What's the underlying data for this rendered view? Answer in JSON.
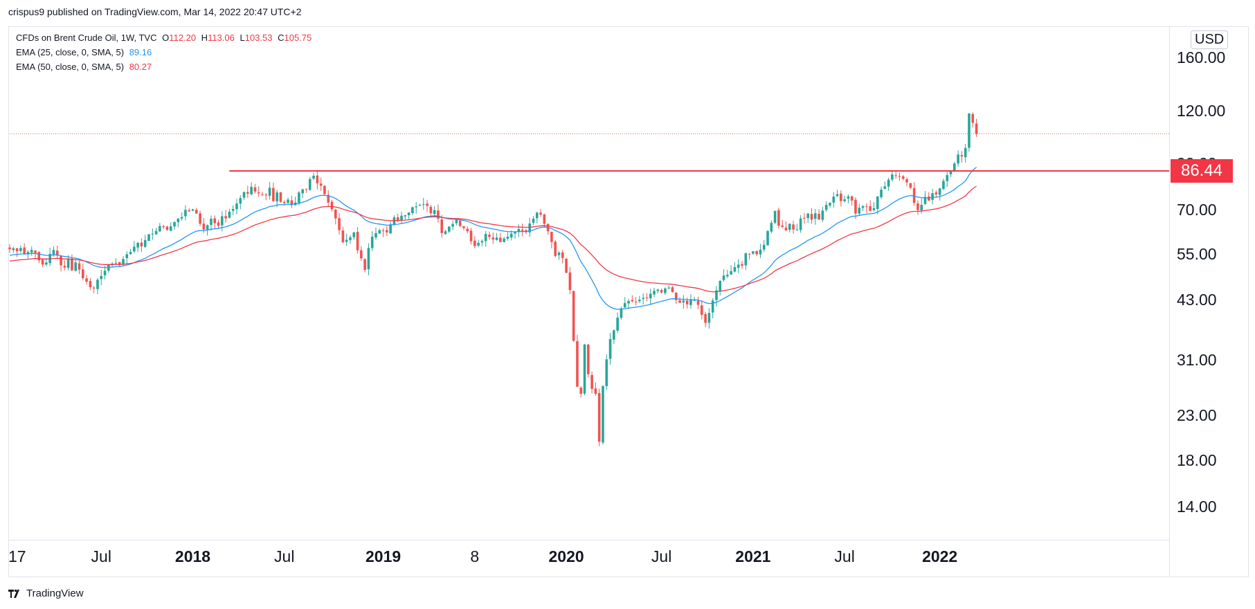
{
  "publisher": "crispus9 published on TradingView.com, Mar 14, 2022 20:47 UTC+2",
  "legend": {
    "symbol": "CFDs on Brent Crude Oil, 1W, TVC",
    "o_label": "O",
    "o": "112.20",
    "h_label": "H",
    "h": "113.06",
    "l_label": "L",
    "l": "103.53",
    "c_label": "C",
    "c": "105.75",
    "ema25": "EMA (25, close, 0, SMA, 5)",
    "ema25_value": "89.16",
    "ema50": "EMA (50, close, 0, SMA, 5)",
    "ema50_value": "80.27"
  },
  "currency": "USD",
  "price_tag": "86.44",
  "footer_logo": "TradingView",
  "colors": {
    "up": "#26a69a",
    "down": "#ef5350",
    "ema25": "#2196f3",
    "ema50": "#f23645",
    "resistance": "#f23645"
  },
  "chart_data": {
    "type": "candlestick",
    "title": "CFDs on Brent Crude Oil, 1W, TVC",
    "yscale": "log",
    "ylim": [
      12.5,
      168
    ],
    "y_ticks": [
      "14.00",
      "18.00",
      "23.00",
      "31.00",
      "43.00",
      "55.00",
      "70.00",
      "90.00",
      "120.00",
      "160.00"
    ],
    "x_ticks": [
      {
        "label": "17",
        "bold": false,
        "week": 0
      },
      {
        "label": "Jul",
        "bold": false,
        "week": 25
      },
      {
        "label": "2018",
        "bold": true,
        "week": 50
      },
      {
        "label": "Jul",
        "bold": false,
        "week": 75
      },
      {
        "label": "2019",
        "bold": true,
        "week": 102
      },
      {
        "label": "8",
        "bold": false,
        "week": 127
      },
      {
        "label": "2020",
        "bold": true,
        "week": 152
      },
      {
        "label": "Jul",
        "bold": false,
        "week": 178
      },
      {
        "label": "2021",
        "bold": true,
        "week": 203
      },
      {
        "label": "Jul",
        "bold": false,
        "week": 228
      },
      {
        "label": "2022",
        "bold": true,
        "week": 254
      }
    ],
    "resistance_level": 86.44,
    "resistance_start_week": 60,
    "last_close": 105.75,
    "weekly_closes": [
      56.5,
      56.8,
      55.9,
      56.9,
      55.0,
      55.7,
      56.3,
      55.4,
      53.2,
      52.0,
      52.6,
      55.1,
      56.3,
      54.6,
      51.8,
      51.2,
      53.6,
      50.4,
      52.6,
      50.6,
      48.3,
      47.4,
      46.0,
      45.7,
      47.9,
      48.9,
      50.3,
      52.1,
      52.3,
      52.5,
      51.9,
      53.6,
      55.0,
      55.7,
      57.3,
      58.5,
      57.4,
      59.4,
      61.3,
      61.5,
      62.4,
      64.1,
      63.7,
      62.8,
      64.0,
      65.5,
      66.8,
      67.3,
      70.0,
      69.4,
      70.2,
      68.6,
      64.9,
      62.9,
      64.4,
      66.7,
      65.1,
      64.2,
      67.6,
      66.8,
      69.3,
      70.3,
      72.4,
      74.6,
      77.1,
      76.4,
      79.3,
      77.3,
      76.5,
      75.9,
      75.7,
      78.9,
      73.4,
      76.9,
      73.1,
      72.6,
      74.0,
      71.8,
      72.8,
      76.9,
      78.2,
      78.2,
      82.7,
      84.2,
      80.8,
      79.8,
      76.2,
      72.8,
      70.2,
      66.8,
      62.7,
      58.7,
      59.5,
      60.3,
      61.9,
      56.2,
      53.8,
      50.5,
      56.9,
      60.5,
      61.7,
      62.7,
      62.5,
      61.9,
      64.7,
      67.2,
      66.0,
      67.8,
      68.0,
      69.0,
      71.0,
      71.3,
      71.9,
      72.2,
      71.5,
      68.7,
      69.9,
      66.7,
      61.7,
      62.3,
      63.9,
      64.8,
      66.3,
      64.1,
      63.4,
      62.3,
      59.0,
      57.5,
      58.5,
      59.1,
      61.4,
      60.4,
      59.6,
      60.2,
      58.8,
      59.9,
      60.5,
      61.5,
      62.1,
      63.1,
      62.4,
      62.0,
      65.0,
      66.7,
      68.9,
      68.2,
      64.9,
      62.3,
      58.8,
      54.5,
      55.5,
      53.9,
      49.7,
      45.3,
      34.4,
      26.8,
      25.8,
      33.7,
      28.7,
      26.5,
      25.8,
      19.9,
      26.9,
      31.1,
      34.7,
      36.4,
      39.0,
      41.0,
      42.2,
      42.7,
      42.6,
      42.5,
      43.0,
      43.4,
      43.5,
      44.4,
      45.1,
      45.4,
      44.7,
      45.7,
      45.9,
      44.8,
      42.9,
      42.3,
      42.8,
      41.9,
      42.9,
      42.9,
      41.8,
      39.6,
      37.9,
      40.0,
      42.8,
      45.2,
      47.6,
      49.0,
      49.2,
      50.2,
      51.3,
      52.0,
      51.7,
      55.3,
      55.1,
      55.9,
      55.0,
      56.4,
      57.9,
      62.4,
      65.2,
      69.6,
      64.2,
      63.8,
      62.6,
      64.9,
      62.9,
      62.9,
      66.8,
      66.8,
      68.6,
      66.4,
      68.7,
      66.4,
      69.7,
      71.9,
      72.7,
      75.2,
      76.2,
      73.4,
      74.1,
      75.3,
      73.6,
      68.6,
      70.8,
      71.4,
      71.2,
      69.6,
      70.6,
      75.3,
      78.1,
      79.5,
      82.4,
      84.8,
      84.3,
      83.9,
      82.8,
      81.2,
      78.9,
      72.7,
      69.9,
      71.9,
      75.1,
      73.6,
      76.6,
      76.1,
      78.6,
      81.9,
      84.5,
      86.4,
      90.0,
      94.5,
      93.5,
      97.9,
      118.1,
      112.2,
      105.75
    ],
    "series": [
      {
        "name": "EMA (25, close, 0, SMA, 5)",
        "color": "#2196f3",
        "period": 25,
        "current": 89.16
      },
      {
        "name": "EMA (50, close, 0, SMA, 5)",
        "color": "#f23645",
        "period": 50,
        "current": 80.27
      }
    ]
  }
}
